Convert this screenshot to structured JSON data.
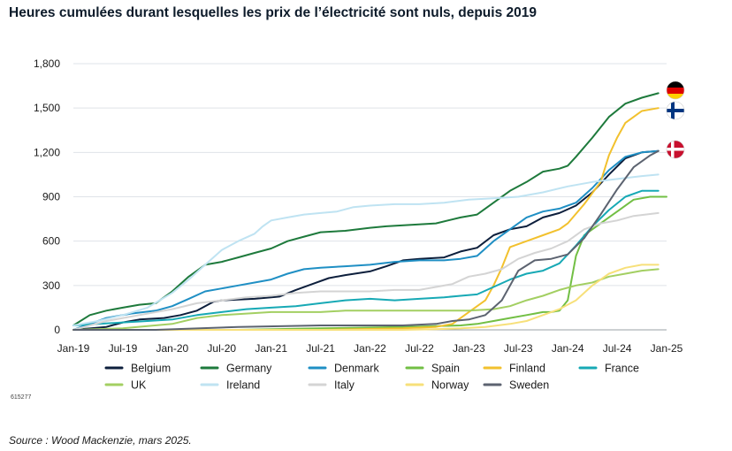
{
  "title": "Heures cumulées durant lesquelles les prix de l’électricité sont nuls, depuis 2019",
  "code": "615277",
  "source": "Source : Wood Mackenzie, mars 2025.",
  "chart_data": {
    "type": "line",
    "title": "Heures cumulées durant lesquelles les prix de l’électricité sont nuls, depuis 2019",
    "xlabel": "",
    "ylabel": "",
    "x_ticks": [
      "Jan-19",
      "Jul-19",
      "Jan-20",
      "Jul-20",
      "Jan-21",
      "Jul-21",
      "Jan-22",
      "Jul-22",
      "Jan-23",
      "Jul-23",
      "Jan-24",
      "Jul-24",
      "Jan-25"
    ],
    "y_ticks": [
      "0",
      "300",
      "600",
      "900",
      "1,200",
      "1,500",
      "1,800"
    ],
    "y_tick_values": [
      0,
      300,
      600,
      900,
      1200,
      1500,
      1800
    ],
    "xlim": [
      0,
      72
    ],
    "ylim": [
      0,
      1800
    ],
    "x_unit": "months since Jan-2019",
    "flag_annotations": [
      "Germany",
      "Finland",
      "Denmark"
    ],
    "legend_position": "bottom",
    "series": [
      {
        "name": "Belgium",
        "color": "#0d1f3c",
        "points": [
          [
            0,
            0
          ],
          [
            4,
            20
          ],
          [
            6,
            50
          ],
          [
            8,
            70
          ],
          [
            11,
            80
          ],
          [
            13,
            100
          ],
          [
            15,
            130
          ],
          [
            17,
            190
          ],
          [
            18,
            200
          ],
          [
            20,
            205
          ],
          [
            22,
            210
          ],
          [
            24,
            220
          ],
          [
            25,
            225
          ],
          [
            27,
            270
          ],
          [
            29,
            310
          ],
          [
            31,
            350
          ],
          [
            33,
            370
          ],
          [
            36,
            395
          ],
          [
            38,
            430
          ],
          [
            40,
            470
          ],
          [
            42,
            480
          ],
          [
            45,
            490
          ],
          [
            47,
            530
          ],
          [
            49,
            555
          ],
          [
            51,
            640
          ],
          [
            53,
            680
          ],
          [
            55,
            700
          ],
          [
            57,
            760
          ],
          [
            59,
            790
          ],
          [
            61,
            840
          ],
          [
            63,
            930
          ],
          [
            65,
            1050
          ],
          [
            67,
            1160
          ],
          [
            69,
            1200
          ],
          [
            71,
            1210
          ]
        ]
      },
      {
        "name": "Germany",
        "color": "#1e7a3c",
        "points": [
          [
            0,
            30
          ],
          [
            2,
            100
          ],
          [
            4,
            130
          ],
          [
            6,
            150
          ],
          [
            8,
            170
          ],
          [
            10,
            180
          ],
          [
            12,
            260
          ],
          [
            14,
            360
          ],
          [
            16,
            440
          ],
          [
            18,
            460
          ],
          [
            20,
            490
          ],
          [
            22,
            520
          ],
          [
            24,
            550
          ],
          [
            26,
            600
          ],
          [
            28,
            630
          ],
          [
            30,
            660
          ],
          [
            33,
            670
          ],
          [
            36,
            690
          ],
          [
            38,
            700
          ],
          [
            41,
            710
          ],
          [
            44,
            720
          ],
          [
            47,
            760
          ],
          [
            49,
            780
          ],
          [
            51,
            860
          ],
          [
            53,
            940
          ],
          [
            55,
            1000
          ],
          [
            57,
            1070
          ],
          [
            59,
            1090
          ],
          [
            60,
            1110
          ],
          [
            61,
            1170
          ],
          [
            63,
            1300
          ],
          [
            65,
            1440
          ],
          [
            67,
            1530
          ],
          [
            69,
            1570
          ],
          [
            71,
            1600
          ]
        ]
      },
      {
        "name": "Denmark",
        "color": "#1f8fc4",
        "points": [
          [
            0,
            0
          ],
          [
            4,
            80
          ],
          [
            7,
            110
          ],
          [
            10,
            130
          ],
          [
            12,
            160
          ],
          [
            14,
            210
          ],
          [
            16,
            260
          ],
          [
            18,
            280
          ],
          [
            20,
            300
          ],
          [
            22,
            320
          ],
          [
            24,
            340
          ],
          [
            26,
            380
          ],
          [
            28,
            410
          ],
          [
            30,
            420
          ],
          [
            33,
            430
          ],
          [
            36,
            440
          ],
          [
            39,
            460
          ],
          [
            42,
            470
          ],
          [
            45,
            470
          ],
          [
            47,
            480
          ],
          [
            49,
            500
          ],
          [
            51,
            600
          ],
          [
            53,
            680
          ],
          [
            55,
            760
          ],
          [
            57,
            800
          ],
          [
            59,
            820
          ],
          [
            61,
            860
          ],
          [
            63,
            960
          ],
          [
            65,
            1080
          ],
          [
            67,
            1170
          ],
          [
            69,
            1200
          ],
          [
            71,
            1210
          ]
        ]
      },
      {
        "name": "Spain",
        "color": "#72bf44",
        "points": [
          [
            0,
            0
          ],
          [
            10,
            0
          ],
          [
            20,
            0
          ],
          [
            30,
            10
          ],
          [
            40,
            20
          ],
          [
            44,
            25
          ],
          [
            47,
            30
          ],
          [
            49,
            40
          ],
          [
            51,
            60
          ],
          [
            53,
            80
          ],
          [
            55,
            100
          ],
          [
            56,
            110
          ],
          [
            57,
            120
          ],
          [
            58,
            120
          ],
          [
            59,
            130
          ],
          [
            60,
            200
          ],
          [
            61,
            500
          ],
          [
            62,
            640
          ],
          [
            64,
            720
          ],
          [
            66,
            800
          ],
          [
            68,
            880
          ],
          [
            70,
            900
          ],
          [
            72,
            900
          ]
        ]
      },
      {
        "name": "Finland",
        "color": "#f2c12e",
        "points": [
          [
            0,
            0
          ],
          [
            10,
            0
          ],
          [
            20,
            0
          ],
          [
            30,
            0
          ],
          [
            40,
            10
          ],
          [
            44,
            20
          ],
          [
            46,
            40
          ],
          [
            48,
            120
          ],
          [
            50,
            200
          ],
          [
            51,
            300
          ],
          [
            52,
            420
          ],
          [
            53,
            560
          ],
          [
            55,
            600
          ],
          [
            57,
            640
          ],
          [
            59,
            680
          ],
          [
            60,
            720
          ],
          [
            62,
            850
          ],
          [
            64,
            1000
          ],
          [
            65,
            1180
          ],
          [
            66,
            1300
          ],
          [
            67,
            1400
          ],
          [
            69,
            1480
          ],
          [
            71,
            1500
          ]
        ]
      },
      {
        "name": "France",
        "color": "#17a9b5",
        "points": [
          [
            0,
            30
          ],
          [
            3,
            40
          ],
          [
            6,
            50
          ],
          [
            9,
            60
          ],
          [
            12,
            70
          ],
          [
            15,
            100
          ],
          [
            18,
            120
          ],
          [
            21,
            140
          ],
          [
            24,
            150
          ],
          [
            27,
            160
          ],
          [
            30,
            180
          ],
          [
            33,
            200
          ],
          [
            36,
            210
          ],
          [
            39,
            200
          ],
          [
            42,
            210
          ],
          [
            45,
            220
          ],
          [
            47,
            230
          ],
          [
            49,
            240
          ],
          [
            51,
            290
          ],
          [
            53,
            340
          ],
          [
            55,
            380
          ],
          [
            57,
            400
          ],
          [
            59,
            450
          ],
          [
            61,
            570
          ],
          [
            63,
            700
          ],
          [
            65,
            810
          ],
          [
            67,
            900
          ],
          [
            69,
            940
          ],
          [
            71,
            940
          ]
        ]
      },
      {
        "name": "UK",
        "color": "#a3cf62",
        "points": [
          [
            0,
            0
          ],
          [
            6,
            10
          ],
          [
            12,
            40
          ],
          [
            15,
            80
          ],
          [
            18,
            100
          ],
          [
            21,
            110
          ],
          [
            24,
            120
          ],
          [
            27,
            120
          ],
          [
            30,
            120
          ],
          [
            33,
            130
          ],
          [
            36,
            130
          ],
          [
            39,
            130
          ],
          [
            42,
            130
          ],
          [
            45,
            130
          ],
          [
            48,
            130
          ],
          [
            51,
            140
          ],
          [
            53,
            160
          ],
          [
            55,
            200
          ],
          [
            57,
            230
          ],
          [
            59,
            270
          ],
          [
            61,
            300
          ],
          [
            63,
            320
          ],
          [
            65,
            360
          ],
          [
            67,
            380
          ],
          [
            69,
            400
          ],
          [
            71,
            410
          ]
        ]
      },
      {
        "name": "Ireland",
        "color": "#bfe3f2",
        "points": [
          [
            0,
            30
          ],
          [
            3,
            60
          ],
          [
            6,
            100
          ],
          [
            9,
            150
          ],
          [
            12,
            250
          ],
          [
            14,
            340
          ],
          [
            16,
            440
          ],
          [
            18,
            540
          ],
          [
            20,
            600
          ],
          [
            22,
            650
          ],
          [
            23,
            700
          ],
          [
            24,
            740
          ],
          [
            26,
            760
          ],
          [
            28,
            780
          ],
          [
            30,
            790
          ],
          [
            32,
            800
          ],
          [
            34,
            830
          ],
          [
            36,
            840
          ],
          [
            39,
            850
          ],
          [
            42,
            850
          ],
          [
            45,
            860
          ],
          [
            48,
            880
          ],
          [
            51,
            890
          ],
          [
            54,
            900
          ],
          [
            57,
            930
          ],
          [
            60,
            970
          ],
          [
            63,
            1000
          ],
          [
            66,
            1020
          ],
          [
            69,
            1040
          ],
          [
            71,
            1050
          ]
        ]
      },
      {
        "name": "Italy",
        "color": "#d4d4d4",
        "points": [
          [
            0,
            0
          ],
          [
            4,
            60
          ],
          [
            8,
            100
          ],
          [
            12,
            140
          ],
          [
            15,
            180
          ],
          [
            18,
            200
          ],
          [
            21,
            220
          ],
          [
            24,
            230
          ],
          [
            27,
            250
          ],
          [
            30,
            260
          ],
          [
            33,
            260
          ],
          [
            36,
            260
          ],
          [
            39,
            270
          ],
          [
            42,
            270
          ],
          [
            44,
            290
          ],
          [
            46,
            310
          ],
          [
            48,
            360
          ],
          [
            50,
            380
          ],
          [
            52,
            410
          ],
          [
            54,
            480
          ],
          [
            56,
            520
          ],
          [
            58,
            550
          ],
          [
            60,
            600
          ],
          [
            62,
            680
          ],
          [
            64,
            720
          ],
          [
            66,
            740
          ],
          [
            68,
            770
          ],
          [
            71,
            790
          ]
        ]
      },
      {
        "name": "Norway",
        "color": "#f7e07a",
        "points": [
          [
            0,
            0
          ],
          [
            10,
            0
          ],
          [
            20,
            0
          ],
          [
            30,
            0
          ],
          [
            40,
            0
          ],
          [
            44,
            5
          ],
          [
            47,
            10
          ],
          [
            50,
            20
          ],
          [
            53,
            40
          ],
          [
            55,
            60
          ],
          [
            57,
            100
          ],
          [
            59,
            140
          ],
          [
            61,
            200
          ],
          [
            63,
            300
          ],
          [
            65,
            380
          ],
          [
            67,
            420
          ],
          [
            69,
            440
          ],
          [
            71,
            440
          ]
        ]
      },
      {
        "name": "Sweden",
        "color": "#5c6370",
        "points": [
          [
            0,
            0
          ],
          [
            10,
            0
          ],
          [
            20,
            20
          ],
          [
            30,
            30
          ],
          [
            40,
            30
          ],
          [
            44,
            40
          ],
          [
            46,
            60
          ],
          [
            48,
            70
          ],
          [
            50,
            100
          ],
          [
            52,
            200
          ],
          [
            54,
            400
          ],
          [
            56,
            470
          ],
          [
            58,
            480
          ],
          [
            60,
            510
          ],
          [
            62,
            620
          ],
          [
            64,
            780
          ],
          [
            66,
            950
          ],
          [
            68,
            1100
          ],
          [
            70,
            1180
          ],
          [
            71,
            1210
          ]
        ]
      }
    ]
  }
}
